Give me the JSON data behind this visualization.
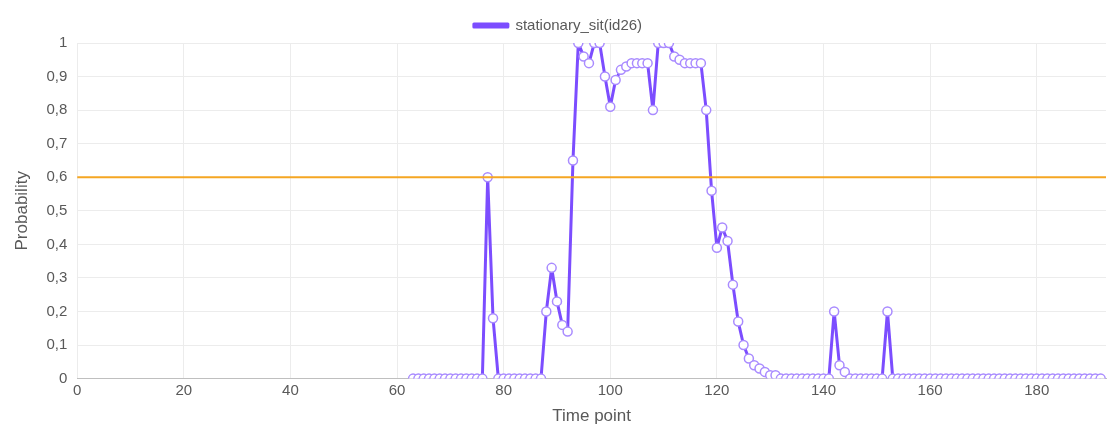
{
  "chart_data": {
    "type": "line",
    "xlabel": "Time point",
    "ylabel": "Probability",
    "x": [
      63,
      64,
      65,
      66,
      67,
      68,
      69,
      70,
      71,
      72,
      73,
      74,
      75,
      76,
      77,
      78,
      79,
      80,
      81,
      82,
      83,
      84,
      85,
      86,
      87,
      88,
      89,
      90,
      91,
      92,
      93,
      94,
      95,
      96,
      97,
      98,
      99,
      100,
      101,
      102,
      103,
      104,
      105,
      106,
      107,
      108,
      109,
      110,
      111,
      112,
      113,
      114,
      115,
      116,
      117,
      118,
      119,
      120,
      121,
      122,
      123,
      124,
      125,
      126,
      127,
      128,
      129,
      130,
      131,
      132,
      133,
      134,
      135,
      136,
      137,
      138,
      139,
      140,
      141,
      142,
      143,
      144,
      145,
      146,
      147,
      148,
      149,
      150,
      151,
      152,
      153,
      154,
      155,
      156,
      157,
      158,
      159,
      160,
      161,
      162,
      163,
      164,
      165,
      166,
      167,
      168,
      169,
      170,
      171,
      172,
      173,
      174,
      175,
      176,
      177,
      178,
      179,
      180,
      181,
      182,
      183,
      184,
      185,
      186,
      187,
      188,
      189,
      190,
      191,
      192
    ],
    "series": [
      {
        "name": "stationary_sit(id26)",
        "color": "#7c4dff",
        "values": [
          0,
          0,
          0,
          0,
          0,
          0,
          0,
          0,
          0,
          0,
          0,
          0,
          0,
          0,
          0.6,
          0.18,
          0,
          0,
          0,
          0,
          0,
          0,
          0,
          0,
          0,
          0.2,
          0.33,
          0.23,
          0.16,
          0.14,
          0.65,
          1,
          0.96,
          0.94,
          1,
          1,
          0.9,
          0.81,
          0.89,
          0.92,
          0.93,
          0.94,
          0.94,
          0.94,
          0.94,
          0.8,
          1,
          1,
          1,
          0.96,
          0.95,
          0.94,
          0.94,
          0.94,
          0.94,
          0.8,
          0.56,
          0.39,
          0.45,
          0.41,
          0.28,
          0.17,
          0.1,
          0.06,
          0.04,
          0.03,
          0.02,
          0.01,
          0.01,
          0,
          0,
          0,
          0,
          0,
          0,
          0,
          0,
          0,
          0,
          0.2,
          0.04,
          0.02,
          0,
          0,
          0,
          0,
          0,
          0,
          0,
          0.2,
          0,
          0,
          0,
          0,
          0,
          0,
          0,
          0,
          0,
          0,
          0,
          0,
          0,
          0,
          0,
          0,
          0,
          0,
          0,
          0,
          0,
          0,
          0,
          0,
          0,
          0,
          0,
          0,
          0,
          0,
          0,
          0,
          0,
          0,
          0,
          0,
          0,
          0,
          0,
          0
        ]
      }
    ],
    "xlim": [
      0,
      193
    ],
    "xticks": [
      0,
      20,
      40,
      60,
      80,
      100,
      120,
      140,
      160,
      180
    ],
    "ylim": [
      0,
      1
    ],
    "yticks": [
      0,
      {
        "value": 0.1,
        "label": "0,1"
      },
      {
        "value": 0.2,
        "label": "0,2"
      },
      {
        "value": 0.3,
        "label": "0,3"
      },
      {
        "value": 0.4,
        "label": "0,4"
      },
      {
        "value": 0.5,
        "label": "0,5"
      },
      {
        "value": 0.6,
        "label": "0,6"
      },
      {
        "value": 0.7,
        "label": "0,7"
      },
      {
        "value": 0.8,
        "label": "0,8"
      },
      {
        "value": 0.9,
        "label": "0,9"
      },
      1
    ],
    "ref_lines": [
      {
        "axis": "y",
        "value": 0.6,
        "color": "#f5a623"
      }
    ],
    "grid": true,
    "legend": "top",
    "marker": "circle",
    "line_style": "solid"
  }
}
